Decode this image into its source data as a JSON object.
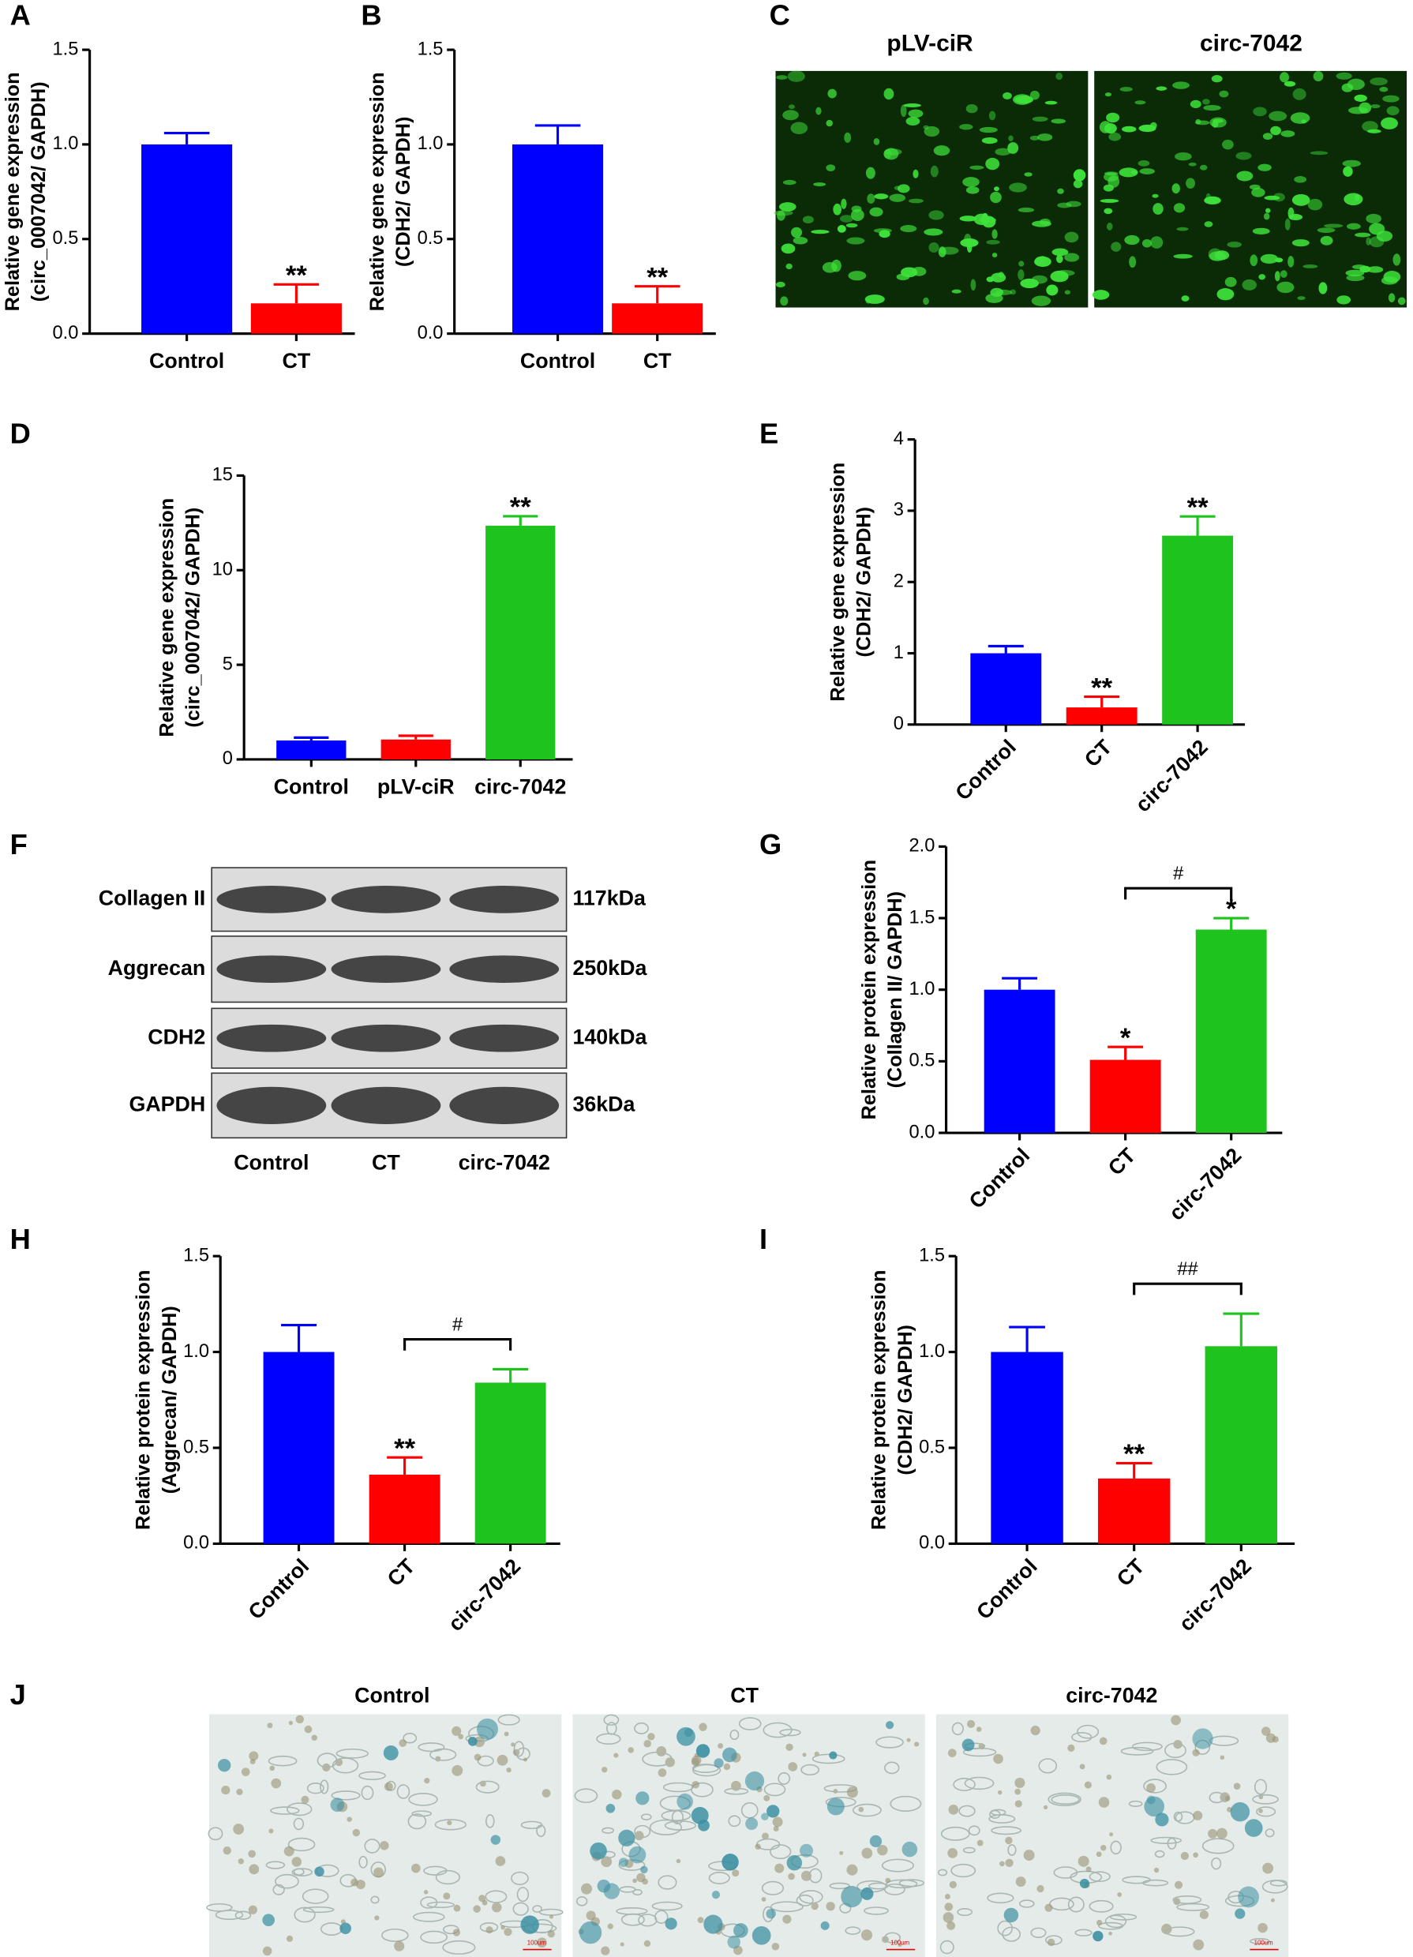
{
  "chart_data": [
    {
      "type": "bar",
      "label": "A",
      "ylabel": [
        "Relative gene expression",
        "(circ_0007042/ GAPDH)"
      ],
      "categories": [
        "Control",
        "CT"
      ],
      "values": [
        1.0,
        0.16
      ],
      "errors": [
        0.06,
        0.1
      ],
      "colors": [
        "#0000ff",
        "#ff0000"
      ],
      "significance": [
        null,
        "**"
      ],
      "ylim": [
        0,
        1.5
      ],
      "yticks": [
        {
          "value": 0,
          "label": "0.0"
        },
        0.5,
        {
          "value": 1,
          "label": "1.0"
        },
        1.5
      ]
    },
    {
      "type": "bar",
      "label": "B",
      "ylabel": [
        "Relative gene expression",
        "(CDH2/ GAPDH)"
      ],
      "categories": [
        "Control",
        "CT"
      ],
      "values": [
        1.0,
        0.16
      ],
      "errors": [
        0.1,
        0.09
      ],
      "colors": [
        "#0000ff",
        "#ff0000"
      ],
      "significance": [
        null,
        "**"
      ],
      "ylim": [
        0,
        1.5
      ],
      "yticks": [
        {
          "value": 0,
          "label": "0.0"
        },
        0.5,
        {
          "value": 1,
          "label": "1.0"
        },
        1.5
      ]
    },
    {
      "type": "bar",
      "label": "D",
      "ylabel": [
        "Relative gene expression",
        "(circ_0007042/ GAPDH)"
      ],
      "categories": [
        "Control",
        "pLV-ciR",
        "circ-7042"
      ],
      "values": [
        1.0,
        1.05,
        12.35
      ],
      "errors": [
        0.15,
        0.2,
        0.5
      ],
      "colors": [
        "#0000ff",
        "#ff0000",
        "#1ec31e"
      ],
      "significance": [
        null,
        null,
        "**"
      ],
      "ylim": [
        0,
        15
      ],
      "yticks": [
        0,
        5,
        10,
        15
      ]
    },
    {
      "type": "bar",
      "label": "E",
      "ylabel": [
        "Relative gene expression",
        "(CDH2/ GAPDH)"
      ],
      "categories": [
        "Control",
        "CT",
        "circ-7042"
      ],
      "values": [
        1.0,
        0.24,
        2.65
      ],
      "errors": [
        0.1,
        0.15,
        0.27
      ],
      "colors": [
        "#0000ff",
        "#ff0000",
        "#1ec31e"
      ],
      "significance": [
        null,
        "**",
        "**"
      ],
      "ylim": [
        0,
        4
      ],
      "yticks": [
        0,
        1,
        2,
        3,
        4
      ]
    },
    {
      "type": "bar",
      "label": "G",
      "ylabel": [
        "Relative protein expression",
        "(Collagen II/ GAPDH)"
      ],
      "categories": [
        "Control",
        "CT",
        "circ-7042"
      ],
      "values": [
        1.0,
        0.51,
        1.42
      ],
      "errors": [
        0.08,
        0.09,
        0.08
      ],
      "colors": [
        "#0000ff",
        "#ff0000",
        "#1ec31e"
      ],
      "significance": [
        null,
        "*",
        "*"
      ],
      "bracket": {
        "from": "CT",
        "to": "circ-7042",
        "label": "#"
      },
      "ylim": [
        0,
        2
      ],
      "yticks": [
        {
          "value": 0,
          "label": "0.0"
        },
        0.5,
        {
          "value": 1,
          "label": "1.0"
        },
        1.5,
        {
          "value": 2,
          "label": "2.0"
        }
      ]
    },
    {
      "type": "bar",
      "label": "H",
      "ylabel": [
        "Relative protein expression",
        "(Aggrecan/ GAPDH)"
      ],
      "categories": [
        "Control",
        "CT",
        "circ-7042"
      ],
      "values": [
        1.0,
        0.36,
        0.84
      ],
      "errors": [
        0.14,
        0.09,
        0.07
      ],
      "colors": [
        "#0000ff",
        "#ff0000",
        "#1ec31e"
      ],
      "significance": [
        null,
        "**",
        null
      ],
      "bracket": {
        "from": "CT",
        "to": "circ-7042",
        "label": "#"
      },
      "ylim": [
        0,
        1.5
      ],
      "yticks": [
        {
          "value": 0,
          "label": "0.0"
        },
        0.5,
        {
          "value": 1,
          "label": "1.0"
        },
        1.5
      ]
    },
    {
      "type": "bar",
      "label": "I",
      "ylabel": [
        "Relative protein expression",
        "(CDH2/ GAPDH)"
      ],
      "categories": [
        "Control",
        "CT",
        "circ-7042"
      ],
      "values": [
        1.0,
        0.34,
        1.03
      ],
      "errors": [
        0.13,
        0.08,
        0.17
      ],
      "colors": [
        "#0000ff",
        "#ff0000",
        "#1ec31e"
      ],
      "significance": [
        null,
        "**",
        null
      ],
      "bracket": {
        "from": "CT",
        "to": "circ-7042",
        "label": "##"
      },
      "ylim": [
        0,
        1.5
      ],
      "yticks": [
        {
          "value": 0,
          "label": "0.0"
        },
        0.5,
        {
          "value": 1,
          "label": "1.0"
        },
        1.5
      ]
    }
  ],
  "panel_c": {
    "label": "C",
    "titles": [
      "pLV-ciR",
      "circ-7042"
    ]
  },
  "panel_f": {
    "label": "F",
    "rows": [
      {
        "name": "Collagen II",
        "size": "117kDa"
      },
      {
        "name": "Aggrecan",
        "size": "250kDa"
      },
      {
        "name": "CDH2",
        "size": "140kDa"
      },
      {
        "name": "GAPDH",
        "size": "36kDa"
      }
    ],
    "lanes": [
      "Control",
      "CT",
      "circ-7042"
    ]
  },
  "panel_j": {
    "label": "J",
    "titles": [
      "Control",
      "CT",
      "circ-7042"
    ],
    "scale_bar": "100um"
  }
}
